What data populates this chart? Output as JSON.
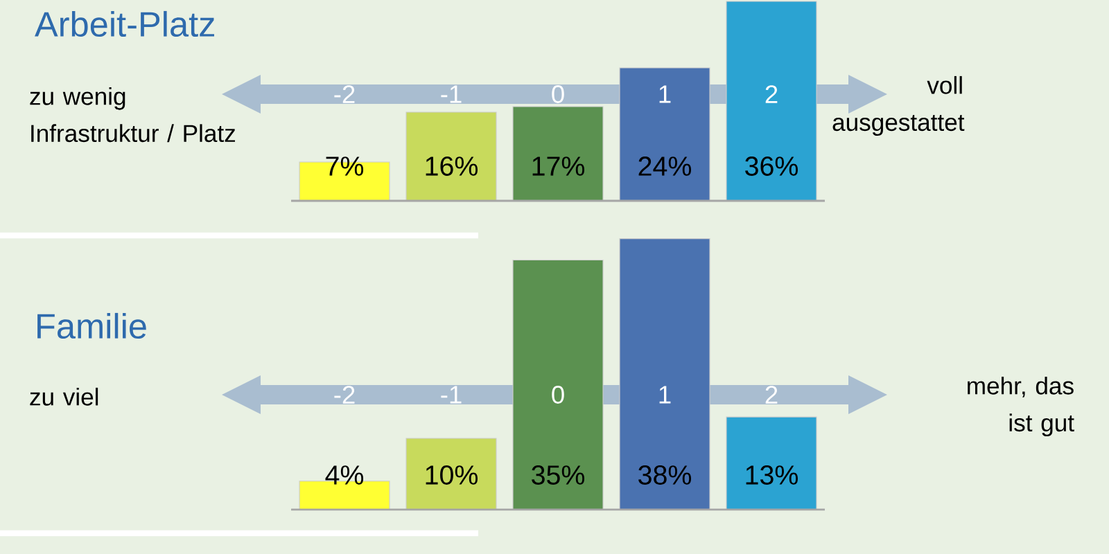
{
  "chart_data": [
    {
      "type": "bar",
      "title": "Arbeit-Platz",
      "categories": [
        "-2",
        "-1",
        "0",
        "1",
        "2"
      ],
      "values": [
        7,
        16,
        17,
        24,
        36
      ],
      "value_labels": [
        "7%",
        "16%",
        "17%",
        "24%",
        "36%"
      ],
      "colors": [
        "#ffff33",
        "#c8da5c",
        "#5b9150",
        "#4a72b0",
        "#2ba3d2"
      ],
      "tick_labels": "x",
      "annotations": [
        "zu wenig Infrastruktur / Platz",
        "voll ausgestattet"
      ]
    },
    {
      "type": "bar",
      "title": "Familie",
      "categories": [
        "-2",
        "-1",
        "0",
        "1",
        "2"
      ],
      "values": [
        4,
        10,
        35,
        38,
        13
      ],
      "value_labels": [
        "4%",
        "10%",
        "35%",
        "38%",
        "13%"
      ],
      "colors": [
        "#ffff33",
        "#c8da5c",
        "#5b9150",
        "#4a72b0",
        "#2ba3d2"
      ],
      "tick_labels": "x",
      "annotations": [
        "zu viel",
        "mehr, das ist gut"
      ]
    }
  ]
}
